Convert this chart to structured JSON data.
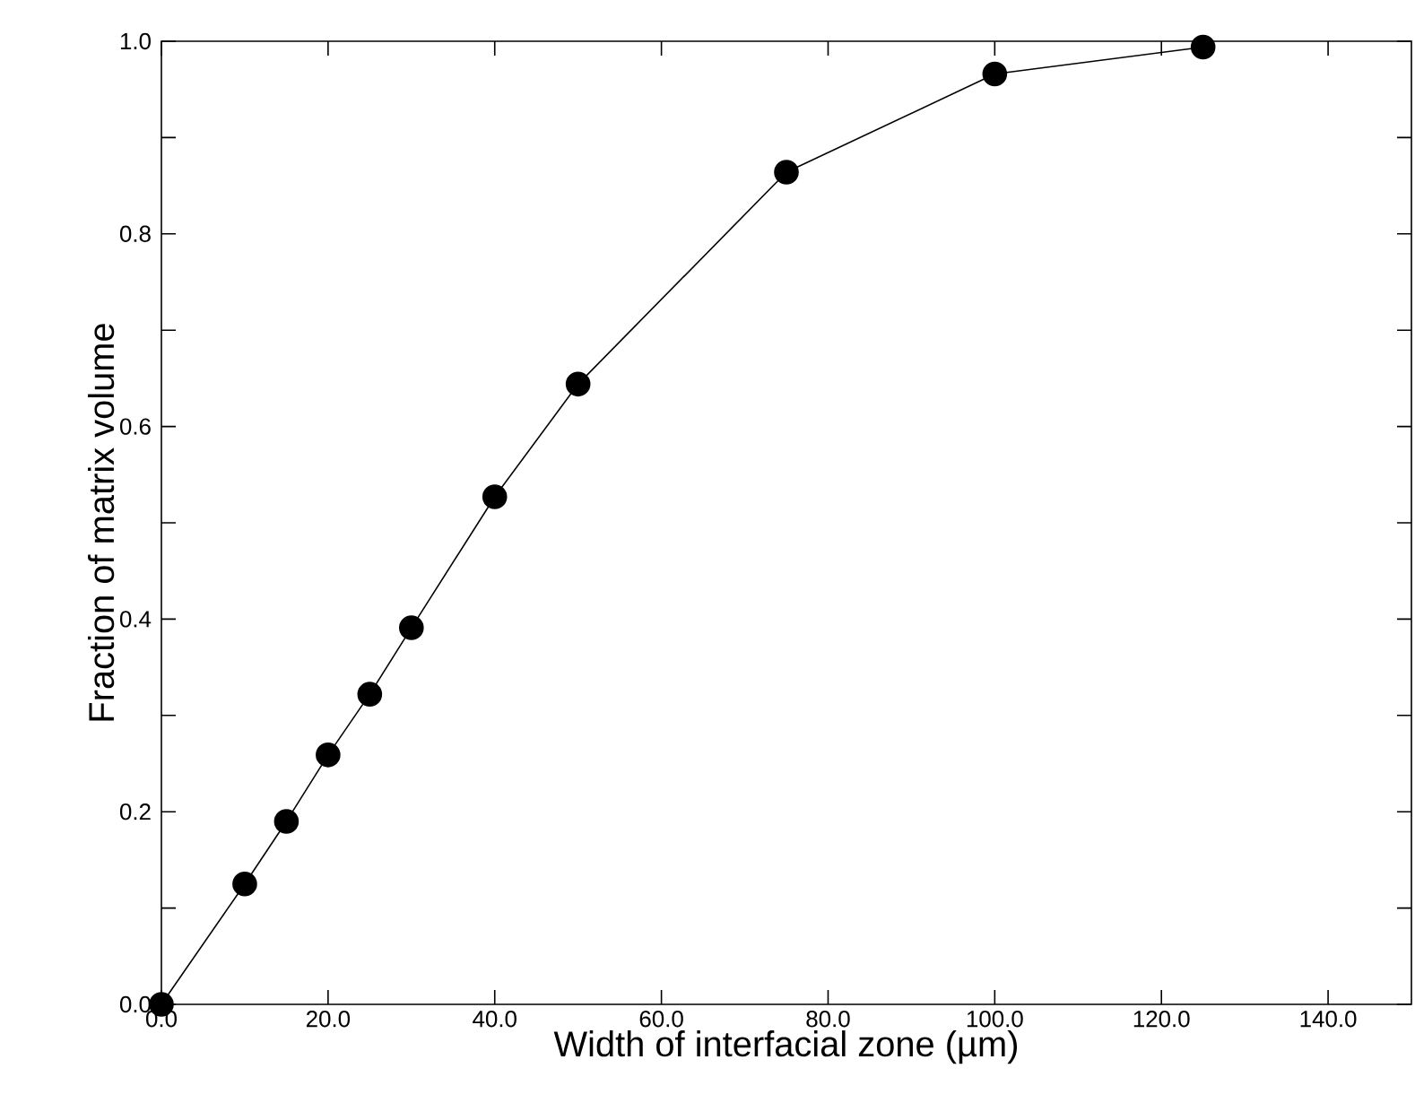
{
  "chart_data": {
    "type": "line",
    "xlabel": "Width of interfacial zone (µm)",
    "ylabel": "Fraction of matrix volume",
    "x": [
      0,
      10,
      15,
      20,
      25,
      30,
      40,
      50,
      75,
      100,
      125
    ],
    "values": [
      0,
      0.125,
      0.19,
      0.259,
      0.322,
      0.391,
      0.527,
      0.644,
      0.864,
      0.966,
      0.994
    ],
    "color": "#000000",
    "marker": "circle",
    "line_style": "solid",
    "grid": false,
    "xlim": [
      0,
      150
    ],
    "ylim": [
      0,
      1
    ],
    "xticks": [
      {
        "value": 0,
        "label": "0.0"
      },
      {
        "value": 20,
        "label": "20.0"
      },
      {
        "value": 40,
        "label": "40.0"
      },
      {
        "value": 60,
        "label": "60.0"
      },
      {
        "value": 80,
        "label": "80.0"
      },
      {
        "value": 100,
        "label": "100.0"
      },
      {
        "value": 120,
        "label": "120.0"
      },
      {
        "value": 140,
        "label": "140.0"
      }
    ],
    "yticks": [
      {
        "value": 0,
        "label": "0.0"
      },
      {
        "value": 0.1,
        "label": null
      },
      {
        "value": 0.2,
        "label": "0.2"
      },
      {
        "value": 0.3,
        "label": null
      },
      {
        "value": 0.4,
        "label": "0.4"
      },
      {
        "value": 0.5,
        "label": null
      },
      {
        "value": 0.6,
        "label": "0.6"
      },
      {
        "value": 0.7,
        "label": null
      },
      {
        "value": 0.8,
        "label": "0.8"
      },
      {
        "value": 0.9,
        "label": null
      },
      {
        "value": 1,
        "label": "1.0"
      }
    ]
  }
}
